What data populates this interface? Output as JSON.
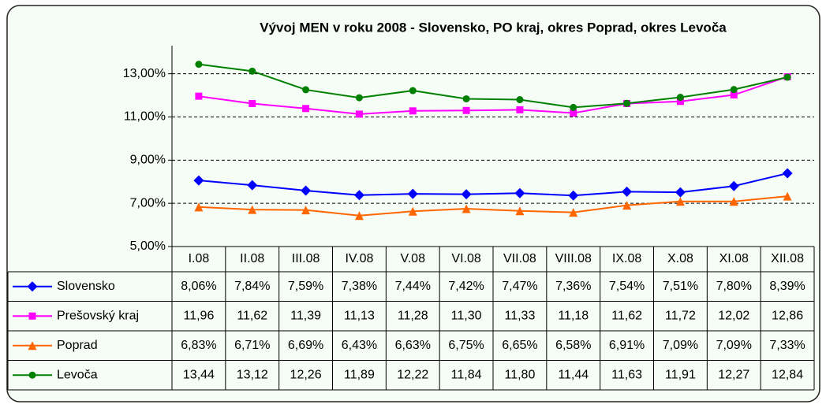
{
  "chart_data": {
    "type": "line",
    "title": "Vývoj MEN v roku 2008 - Slovensko, PO kraj, okres Poprad, okres Levoča",
    "categories": [
      "I.08",
      "II.08",
      "III.08",
      "IV.08",
      "V.08",
      "VI.08",
      "VII.08",
      "VIII.08",
      "IX.08",
      "X.08",
      "XI.08",
      "XII.08"
    ],
    "series": [
      {
        "name": "Slovensko",
        "color": "#0000ff",
        "marker": "diamond",
        "values": [
          8.06,
          7.84,
          7.59,
          7.38,
          7.44,
          7.42,
          7.47,
          7.36,
          7.54,
          7.51,
          7.8,
          8.39
        ],
        "value_labels": [
          "8,06%",
          "7,84%",
          "7,59%",
          "7,38%",
          "7,44%",
          "7,42%",
          "7,47%",
          "7,36%",
          "7,54%",
          "7,51%",
          "7,80%",
          "8,39%"
        ]
      },
      {
        "name": "Prešovský kraj",
        "color": "#ff00ff",
        "marker": "square",
        "values": [
          11.96,
          11.62,
          11.39,
          11.13,
          11.28,
          11.3,
          11.33,
          11.18,
          11.62,
          11.72,
          12.02,
          12.86
        ],
        "value_labels": [
          "11,96",
          "11,62",
          "11,39",
          "11,13",
          "11,28",
          "11,30",
          "11,33",
          "11,18",
          "11,62",
          "11,72",
          "12,02",
          "12,86"
        ]
      },
      {
        "name": "Poprad",
        "color": "#ff6600",
        "marker": "triangle",
        "values": [
          6.83,
          6.71,
          6.69,
          6.43,
          6.63,
          6.75,
          6.65,
          6.58,
          6.91,
          7.09,
          7.09,
          7.33
        ],
        "value_labels": [
          "6,83%",
          "6,71%",
          "6,69%",
          "6,43%",
          "6,63%",
          "6,75%",
          "6,65%",
          "6,58%",
          "6,91%",
          "7,09%",
          "7,09%",
          "7,33%"
        ]
      },
      {
        "name": "Levoča",
        "color": "#008000",
        "marker": "circle",
        "values": [
          13.44,
          13.12,
          12.26,
          11.89,
          12.22,
          11.84,
          11.8,
          11.44,
          11.63,
          11.91,
          12.27,
          12.84
        ],
        "value_labels": [
          "13,44",
          "13,12",
          "12,26",
          "11,89",
          "12,22",
          "11,84",
          "11,80",
          "11,44",
          "11,63",
          "11,91",
          "12,27",
          "12,84"
        ]
      }
    ],
    "ylim": [
      5,
      14.3
    ],
    "yticks": [
      {
        "value": 5,
        "label": "5,00%"
      },
      {
        "value": 7,
        "label": "7,00%"
      },
      {
        "value": 9,
        "label": "9,00%"
      },
      {
        "value": 11,
        "label": "11,00%"
      },
      {
        "value": 13,
        "label": "13,00%"
      }
    ],
    "grid": true
  }
}
